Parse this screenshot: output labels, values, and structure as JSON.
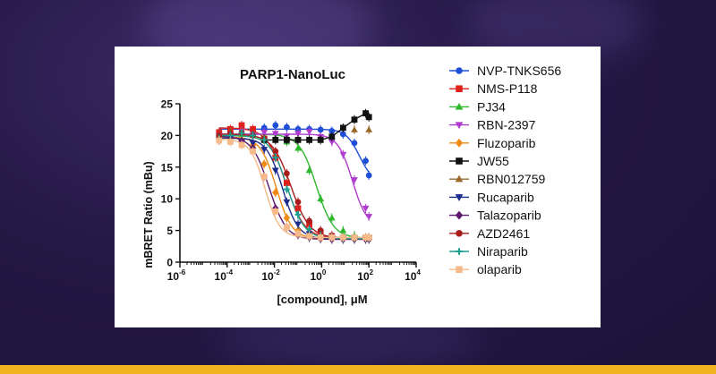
{
  "chart_data": {
    "type": "scatter",
    "title": "PARP1-NanoLuc",
    "xlabel": "[compound], μM",
    "ylabel": "mBRET Ratio (mBu)",
    "x_scale": "log",
    "xlim": [
      1e-06,
      10000
    ],
    "ylim": [
      0,
      25
    ],
    "x_ticks": [
      {
        "value": 1e-06,
        "base": "10",
        "exp": "-6"
      },
      {
        "value": 0.0001,
        "base": "10",
        "exp": "-4"
      },
      {
        "value": 0.01,
        "base": "10",
        "exp": "-2"
      },
      {
        "value": 1,
        "base": "10",
        "exp": "0"
      },
      {
        "value": 100,
        "base": "10",
        "exp": "2"
      },
      {
        "value": 10000,
        "base": "10",
        "exp": "4"
      }
    ],
    "y_ticks": [
      "0",
      "5",
      "10",
      "15",
      "20",
      "25"
    ],
    "y_tick_values": [
      0,
      5,
      10,
      15,
      20,
      25
    ],
    "legend_position": "right",
    "series": [
      {
        "name": "NVP-TNKS656",
        "color": "#1f4fd6",
        "marker": "circle",
        "fit": {
          "top": 21,
          "bottom": 12.5,
          "ic50": 40,
          "hill": 1.5
        },
        "x": [
          4.57e-05,
          0.000137,
          0.000412,
          0.00123,
          0.0037,
          0.0111,
          0.0333,
          0.1,
          0.3,
          0.9,
          2.7,
          8.1,
          24.3,
          72.9,
          100
        ],
        "y": [
          19.5,
          19.8,
          20.4,
          20.8,
          21.2,
          21.6,
          21.3,
          21.0,
          21.0,
          20.9,
          20.7,
          20.2,
          18.8,
          16.0,
          13.7
        ]
      },
      {
        "name": "NMS-P118",
        "color": "#e0201b",
        "marker": "square",
        "fit": {
          "top": 21.2,
          "bottom": 3.8,
          "ic50": 0.03,
          "hill": 1.1
        },
        "x": [
          4.57e-05,
          0.000137,
          0.000412,
          0.00123,
          0.0037,
          0.0111,
          0.0333,
          0.1,
          0.3,
          0.9,
          2.7,
          8.1,
          24.3,
          72.9,
          100
        ],
        "y": [
          20.5,
          21.0,
          21.6,
          21.0,
          19.5,
          16.5,
          12.5,
          8.5,
          6.0,
          4.6,
          4.1,
          3.9,
          3.9,
          3.9,
          3.9
        ]
      },
      {
        "name": "PJ34",
        "color": "#2db82d",
        "marker": "triangle-up",
        "fit": {
          "top": 20.2,
          "bottom": 3.8,
          "ic50": 0.6,
          "hill": 1.2
        },
        "x": [
          4.57e-05,
          0.000137,
          0.000412,
          0.00123,
          0.0037,
          0.0111,
          0.0333,
          0.1,
          0.3,
          0.9,
          2.7,
          8.1,
          24.3,
          72.9,
          100
        ],
        "y": [
          20.0,
          20.5,
          20.2,
          20.0,
          19.8,
          19.6,
          19.0,
          18.0,
          14.5,
          10.0,
          7.0,
          5.0,
          4.2,
          3.9,
          3.9
        ]
      },
      {
        "name": "RBN-2397",
        "color": "#b03cd0",
        "marker": "triangle-down",
        "fit": {
          "top": 20.2,
          "bottom": 5.5,
          "ic50": 20,
          "hill": 1.4
        },
        "x": [
          4.57e-05,
          0.000137,
          0.000412,
          0.00123,
          0.0037,
          0.0111,
          0.0333,
          0.1,
          0.3,
          0.9,
          2.7,
          8.1,
          24.3,
          72.9,
          100
        ],
        "y": [
          20.0,
          20.2,
          20.6,
          20.0,
          20.5,
          20.3,
          19.9,
          20.3,
          20.6,
          19.8,
          19.0,
          17.0,
          13.0,
          8.5,
          7.2
        ]
      },
      {
        "name": "Fluzoparib",
        "color": "#f08a12",
        "marker": "diamond",
        "fit": {
          "top": 19.8,
          "bottom": 3.7,
          "ic50": 0.012,
          "hill": 1.3
        },
        "x": [
          4.57e-05,
          0.000137,
          0.000412,
          0.00123,
          0.0037,
          0.0111,
          0.0333,
          0.1,
          0.3,
          0.9,
          2.7,
          8.1,
          24.3,
          72.9,
          100
        ],
        "y": [
          19.5,
          19.5,
          19.3,
          18.5,
          15.5,
          11.0,
          7.0,
          5.0,
          4.2,
          3.9,
          3.8,
          3.8,
          3.8,
          3.8,
          3.8
        ]
      },
      {
        "name": "JW55",
        "color": "#111111",
        "marker": "square",
        "fit": null,
        "x": [
          0.0037,
          0.0111,
          0.0333,
          0.1,
          0.3,
          0.9,
          2.7,
          8.1,
          24.3,
          72.9,
          100
        ],
        "y": [
          19.3,
          19.3,
          19.3,
          19.3,
          19.3,
          19.3,
          19.8,
          21.2,
          22.5,
          23.5,
          22.9
        ]
      },
      {
        "name": "RBN012759",
        "color": "#9a6a2c",
        "marker": "triangle-up",
        "fit": null,
        "x": [
          24.3,
          100
        ],
        "y": [
          20.9,
          20.9
        ]
      },
      {
        "name": "Rucaparib",
        "color": "#1a2c8c",
        "marker": "triangle-down",
        "fit": {
          "top": 19.6,
          "bottom": 3.7,
          "ic50": 0.022,
          "hill": 1.3
        },
        "x": [
          4.57e-05,
          0.000137,
          0.000412,
          0.00123,
          0.0037,
          0.0111,
          0.0333,
          0.1,
          0.3,
          0.9,
          2.7,
          8.1,
          24.3,
          72.9,
          100
        ],
        "y": [
          19.2,
          19.6,
          19.0,
          18.8,
          17.8,
          14.5,
          9.5,
          6.0,
          4.5,
          4.0,
          3.8,
          3.8,
          3.8,
          3.8,
          3.8
        ]
      },
      {
        "name": "Talazoparib",
        "color": "#5c1a6e",
        "marker": "diamond",
        "fit": {
          "top": 19.9,
          "bottom": 3.6,
          "ic50": 0.006,
          "hill": 1.2
        },
        "x": [
          4.57e-05,
          0.000137,
          0.000412,
          0.00123,
          0.0037,
          0.0111,
          0.0333,
          0.1,
          0.3,
          0.9,
          2.7,
          8.1,
          24.3,
          72.9,
          100
        ],
        "y": [
          19.8,
          19.6,
          19.2,
          18.0,
          13.5,
          8.5,
          5.5,
          4.3,
          3.9,
          3.7,
          3.6,
          3.6,
          3.6,
          3.6,
          3.6
        ]
      },
      {
        "name": "AZD2461",
        "color": "#a81c1c",
        "marker": "circle",
        "fit": {
          "top": 20.2,
          "bottom": 3.8,
          "ic50": 0.05,
          "hill": 1.1
        },
        "x": [
          4.57e-05,
          0.000137,
          0.000412,
          0.00123,
          0.0037,
          0.0111,
          0.0333,
          0.1,
          0.3,
          0.9,
          2.7,
          8.1,
          24.3,
          72.9,
          100
        ],
        "y": [
          20.0,
          20.3,
          20.4,
          20.0,
          19.5,
          17.5,
          14.0,
          9.5,
          6.5,
          5.0,
          4.2,
          3.9,
          3.8,
          3.8,
          3.8
        ]
      },
      {
        "name": "Niraparib",
        "color": "#1aa090",
        "marker": "plus",
        "fit": {
          "top": 20.0,
          "bottom": 3.7,
          "ic50": 0.035,
          "hill": 1.2
        },
        "x": [
          4.57e-05,
          0.000137,
          0.000412,
          0.00123,
          0.0037,
          0.0111,
          0.0333,
          0.1,
          0.3,
          0.9,
          2.7,
          8.1,
          24.3,
          72.9,
          100
        ],
        "y": [
          19.5,
          20.0,
          20.4,
          20.0,
          19.3,
          16.5,
          11.5,
          7.5,
          5.2,
          4.2,
          3.9,
          3.8,
          3.8,
          3.8,
          3.8
        ]
      },
      {
        "name": "olaparib",
        "color": "#f5b98a",
        "marker": "square",
        "fit": {
          "top": 19.4,
          "bottom": 3.9,
          "ic50": 0.004,
          "hill": 1.4
        },
        "x": [
          4.57e-05,
          0.000137,
          0.000412,
          0.00123,
          0.0037,
          0.0111,
          0.0333,
          0.1,
          0.3,
          0.9,
          2.7,
          8.1,
          24.3,
          72.9,
          100
        ],
        "y": [
          19.2,
          19.0,
          18.5,
          17.5,
          13.5,
          8.0,
          5.5,
          4.5,
          4.1,
          3.9,
          3.9,
          3.9,
          3.9,
          3.9,
          3.9
        ]
      }
    ]
  }
}
